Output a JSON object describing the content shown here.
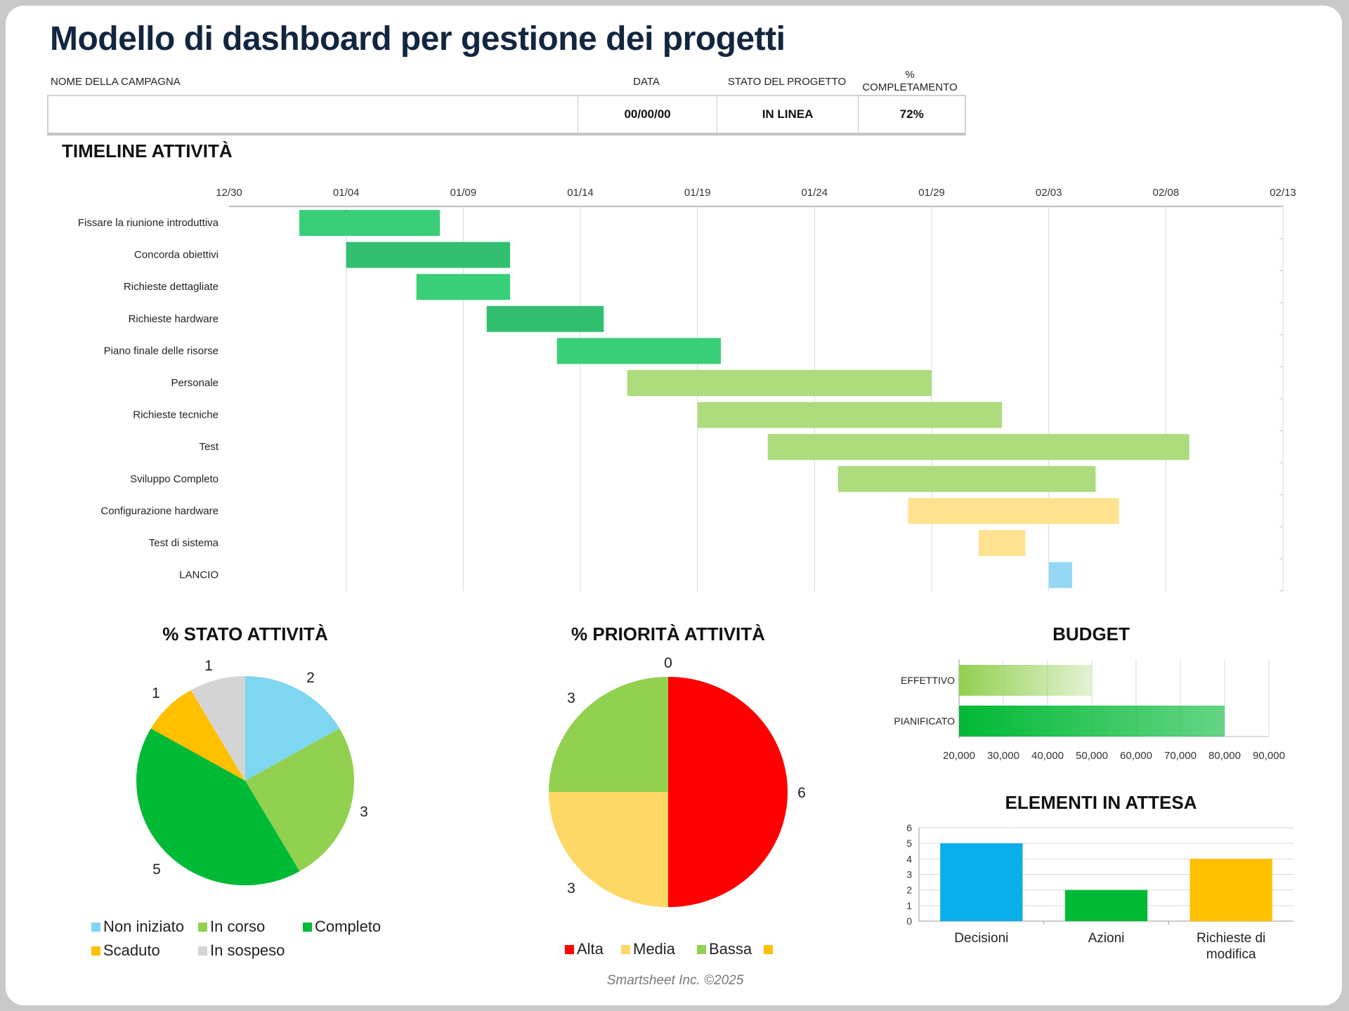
{
  "title": "Modello di dashboard per gestione dei progetti",
  "header": {
    "campaign_label": "NOME DELLA CAMPAGNA",
    "campaign_value": "",
    "date_label": "DATA",
    "date_value": "00/00/00",
    "status_label": "STATO DEL PROGETTO",
    "status_value": "IN LINEA",
    "completion_label_1": "%",
    "completion_label_2": "COMPLETAMENTO",
    "completion_value": "72%"
  },
  "timeline": {
    "title": "TIMELINE ATTIVITÀ",
    "axis_ticks": [
      "12/30",
      "01/04",
      "01/09",
      "01/14",
      "01/19",
      "01/24",
      "01/29",
      "02/03",
      "02/08",
      "02/13"
    ],
    "tasks": [
      {
        "name": "Fissare la riunione introduttiva",
        "start": "01/02",
        "days": 6,
        "color": "#2ecc71"
      },
      {
        "name": "Concorda obiettivi",
        "start": "01/04",
        "days": 7,
        "color": "#27bd68"
      },
      {
        "name": "Richieste dettagliate",
        "start": "01/07",
        "days": 4,
        "color": "#2ecc71"
      },
      {
        "name": "Richieste hardware",
        "start": "01/10",
        "days": 5,
        "color": "#27bd68"
      },
      {
        "name": "Piano finale delle risorse",
        "start": "01/13",
        "days": 7,
        "color": "#2ecc71"
      },
      {
        "name": "Personale",
        "start": "01/16",
        "days": 13,
        "color": "#a9d977"
      },
      {
        "name": "Richieste tecniche",
        "start": "01/19",
        "days": 13,
        "color": "#a9d977"
      },
      {
        "name": "Test",
        "start": "01/22",
        "days": 18,
        "color": "#a9d977"
      },
      {
        "name": "Sviluppo Completo",
        "start": "01/25",
        "days": 11,
        "color": "#a9d977"
      },
      {
        "name": "Configurazione hardware",
        "start": "01/28",
        "days": 9,
        "color": "#ffe08a"
      },
      {
        "name": "Test di sistema",
        "start": "01/31",
        "days": 2,
        "color": "#ffe08a"
      },
      {
        "name": "LANCIO",
        "start": "02/03",
        "days": 1,
        "color": "#8fd6f2"
      }
    ]
  },
  "chart_data": [
    {
      "type": "pie",
      "title": "% STATO ATTIVITÀ",
      "categories": [
        "Non iniziato",
        "In corso",
        "Completo",
        "Scaduto",
        "In sospeso"
      ],
      "values": [
        2,
        3,
        5,
        1,
        1
      ],
      "colors": [
        "#7fd6f0",
        "#92d050",
        "#00b935",
        "#ffc000",
        "#d4d4d4"
      ],
      "legend": "bottom"
    },
    {
      "type": "pie",
      "title": "% PRIORITÀ ATTIVITÀ",
      "categories": [
        "Alta",
        "Media",
        "Bassa",
        ""
      ],
      "values": [
        6,
        3,
        3,
        0
      ],
      "colors": [
        "#ff0000",
        "#fdd866",
        "#92d050",
        "#ffc000"
      ],
      "legend": "bottom"
    },
    {
      "type": "bar",
      "orientation": "horizontal",
      "title": "BUDGET",
      "categories": [
        "EFFETTIVO",
        "PIANIFICATO"
      ],
      "values": [
        50000,
        80000
      ],
      "xlim": [
        20000,
        90000
      ],
      "ticks": [
        "20,000",
        "30,000",
        "40,000",
        "50,000",
        "60,000",
        "70,000",
        "80,000",
        "90,000"
      ],
      "colors": [
        "#92d050",
        "#00b935"
      ],
      "grid": true
    },
    {
      "type": "bar",
      "title": "ELEMENTI IN ATTESA",
      "categories": [
        "Decisioni",
        "Azioni",
        "Richieste di modifica"
      ],
      "values": [
        5,
        2,
        4
      ],
      "ylim": [
        0,
        6
      ],
      "ticks": [
        "0",
        "1",
        "2",
        "3",
        "4",
        "5",
        "6"
      ],
      "colors": [
        "#08aeea",
        "#00b935",
        "#ffc000"
      ],
      "grid": true
    }
  ],
  "footer": "Smartsheet Inc. ©2025"
}
